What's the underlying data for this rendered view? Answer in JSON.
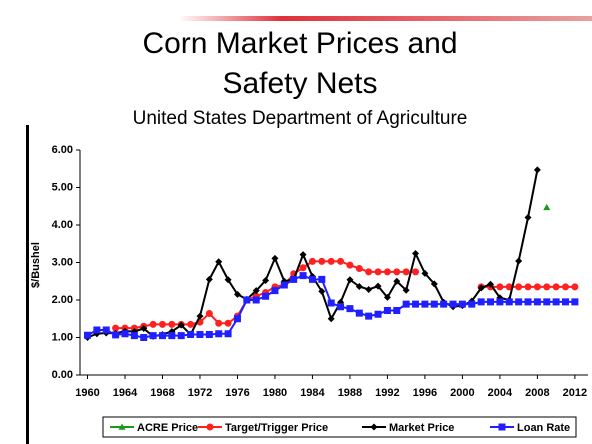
{
  "chart_data": {
    "type": "line",
    "title": "Corn Market Prices and Safety Nets",
    "subtitle": "United States Department of Agriculture",
    "y_label": "$/Bushel",
    "x": [
      1960,
      1961,
      1962,
      1963,
      1964,
      1965,
      1966,
      1967,
      1968,
      1969,
      1970,
      1971,
      1972,
      1973,
      1974,
      1975,
      1976,
      1977,
      1978,
      1979,
      1980,
      1981,
      1982,
      1983,
      1984,
      1985,
      1986,
      1987,
      1988,
      1989,
      1990,
      1991,
      1992,
      1993,
      1994,
      1995,
      1996,
      1997,
      1998,
      1999,
      2000,
      2001,
      2002,
      2003,
      2004,
      2005,
      2006,
      2007,
      2008,
      2009,
      2010,
      2011,
      2012
    ],
    "xlim": [
      1959.2,
      2013.4
    ],
    "xticks": [
      1960,
      1964,
      1968,
      1972,
      1976,
      1980,
      1984,
      1988,
      1992,
      1996,
      2000,
      2004,
      2008,
      2012
    ],
    "ylim": [
      0,
      6
    ],
    "yticks": [
      {
        "value": 0,
        "label": "0.00"
      },
      {
        "value": 1,
        "label": "1.00"
      },
      {
        "value": 2,
        "label": "2.00"
      },
      {
        "value": 3,
        "label": "3.00"
      },
      {
        "value": 4,
        "label": "4.00"
      },
      {
        "value": 5,
        "label": "5.00"
      },
      {
        "value": 6,
        "label": "6.00"
      }
    ],
    "grid": false,
    "legend": "bottom",
    "series": [
      {
        "name": "ACRE Price",
        "color": "#1a9a1a",
        "marker": "triangle",
        "values": [
          null,
          null,
          null,
          null,
          null,
          null,
          null,
          null,
          null,
          null,
          null,
          null,
          null,
          null,
          null,
          null,
          null,
          null,
          null,
          null,
          null,
          null,
          null,
          null,
          null,
          null,
          null,
          null,
          null,
          null,
          null,
          null,
          null,
          null,
          null,
          null,
          null,
          null,
          null,
          null,
          null,
          null,
          null,
          null,
          null,
          null,
          null,
          null,
          null,
          4.47,
          null,
          null,
          null
        ]
      },
      {
        "name": "Target/Trigger Price",
        "color": "#ff2020",
        "marker": "circle",
        "values": [
          null,
          null,
          null,
          1.25,
          1.25,
          1.25,
          1.3,
          1.35,
          1.35,
          1.35,
          1.35,
          1.35,
          1.41,
          1.64,
          1.38,
          1.38,
          1.57,
          2.0,
          2.1,
          2.2,
          2.35,
          2.4,
          2.7,
          2.86,
          3.03,
          3.03,
          3.03,
          3.03,
          2.93,
          2.84,
          2.75,
          2.75,
          2.75,
          2.75,
          2.75,
          2.75,
          null,
          null,
          null,
          null,
          null,
          null,
          2.35,
          2.35,
          2.35,
          2.35,
          2.35,
          2.35,
          2.35,
          2.35,
          2.35,
          2.35,
          2.35
        ]
      },
      {
        "name": "Market Price",
        "color": "#000000",
        "marker": "diamond",
        "values": [
          1.0,
          1.1,
          1.12,
          1.11,
          1.17,
          1.16,
          1.24,
          1.03,
          1.08,
          1.16,
          1.33,
          1.08,
          1.57,
          2.55,
          3.02,
          2.54,
          2.15,
          2.02,
          2.25,
          2.52,
          3.11,
          2.5,
          2.55,
          3.21,
          2.63,
          2.23,
          1.5,
          1.94,
          2.54,
          2.36,
          2.28,
          2.37,
          2.07,
          2.5,
          2.26,
          3.24,
          2.71,
          2.43,
          1.94,
          1.82,
          1.85,
          1.97,
          2.32,
          2.42,
          2.06,
          2.0,
          3.04,
          4.2,
          5.47,
          null,
          null,
          null,
          null
        ]
      },
      {
        "name": "Loan Rate",
        "color": "#1f1fff",
        "marker": "square",
        "values": [
          1.06,
          1.2,
          1.2,
          1.07,
          1.1,
          1.05,
          1.0,
          1.05,
          1.05,
          1.05,
          1.05,
          1.08,
          1.08,
          1.08,
          1.1,
          1.1,
          1.5,
          2.0,
          2.0,
          2.1,
          2.25,
          2.4,
          2.55,
          2.65,
          2.55,
          2.55,
          1.92,
          1.82,
          1.77,
          1.65,
          1.57,
          1.62,
          1.72,
          1.72,
          1.89,
          1.89,
          1.89,
          1.89,
          1.89,
          1.89,
          1.89,
          1.89,
          1.95,
          1.95,
          1.95,
          1.95,
          1.95,
          1.95,
          1.95,
          1.95,
          1.95,
          1.95,
          1.95
        ]
      }
    ]
  }
}
